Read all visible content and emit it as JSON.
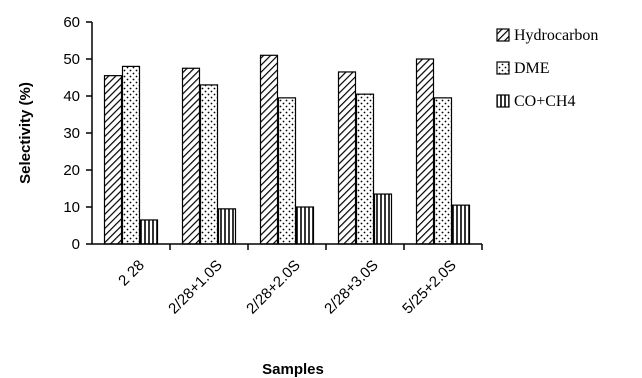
{
  "chart_data": {
    "type": "bar",
    "categories": [
      "2 28",
      "2/28+1.0S",
      "2/28+2.0S",
      "2/28+3.0S",
      "5/25+2.0S"
    ],
    "series": [
      {
        "name": "Hydrocarbon",
        "values": [
          45.5,
          47.5,
          51,
          46.5,
          50
        ],
        "pattern": "diagonal"
      },
      {
        "name": "DME",
        "values": [
          48,
          43,
          39.5,
          40.5,
          39.5
        ],
        "pattern": "dotted"
      },
      {
        "name": "CO+CH4",
        "values": [
          6.5,
          9.5,
          10,
          13.5,
          10.5
        ],
        "pattern": "vertical"
      }
    ],
    "ylabel": "Selectivity (%)",
    "xlabel": "Samples",
    "ylim": [
      0,
      60
    ],
    "yticks": [
      0,
      10,
      20,
      30,
      40,
      50,
      60
    ],
    "grid": false,
    "legend_position": "right"
  }
}
